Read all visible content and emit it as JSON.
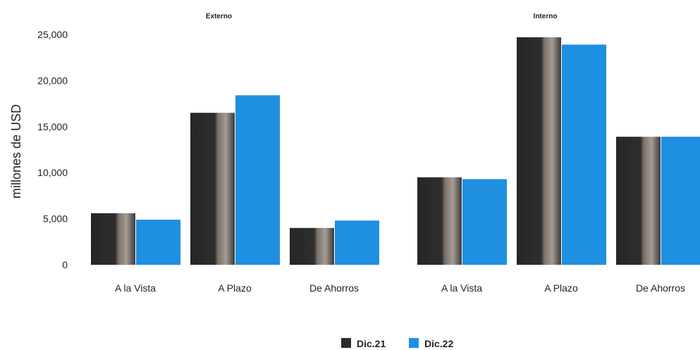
{
  "chart_data": {
    "type": "bar",
    "ylabel": "millones de USD",
    "ylim": [
      0,
      25000
    ],
    "yticks": [
      "0",
      "5,000",
      "10,000",
      "15,000",
      "20,000",
      "25,000"
    ],
    "grid": false,
    "legend_position": "bottom",
    "colors": {
      "Dic.21": "#2b2b2b",
      "Dic.22": "#1e8fe1"
    },
    "panels": [
      {
        "title": "Externo",
        "categories": [
          "A la Vista",
          "A Plazo",
          "De Ahorros"
        ],
        "series": [
          {
            "name": "Dic.21",
            "values": [
              5600,
              16500,
              4000
            ]
          },
          {
            "name": "Dic.22",
            "values": [
              4900,
              18400,
              4800
            ]
          }
        ]
      },
      {
        "title": "Interno",
        "categories": [
          "A la Vista",
          "A Plazo",
          "De Ahorros"
        ],
        "series": [
          {
            "name": "Dic.21",
            "values": [
              9500,
              24700,
              13900
            ]
          },
          {
            "name": "Dic.22",
            "values": [
              9300,
              23900,
              13900
            ]
          }
        ]
      }
    ]
  }
}
